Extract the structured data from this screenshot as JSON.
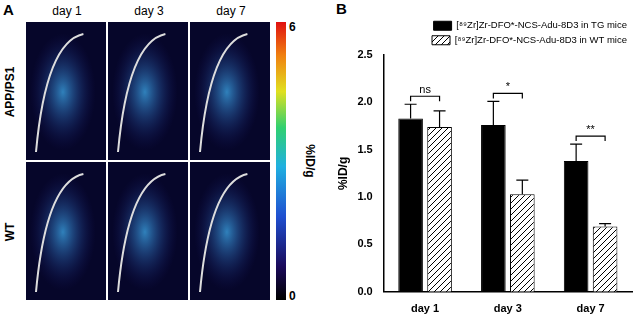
{
  "panel_a": {
    "panel_label": "A",
    "columns": [
      "day 1",
      "day 3",
      "day 7"
    ],
    "rows": [
      "APP/PS1",
      "WT"
    ],
    "colorbar": {
      "range": [
        0,
        6
      ],
      "ticks": [
        0,
        6
      ],
      "label": "%ID/g"
    }
  },
  "chart_data": {
    "type": "bar",
    "panel_label": "B",
    "categories": [
      "day 1",
      "day 3",
      "day 7"
    ],
    "series": [
      {
        "name": "[⁸⁹Zr]Zr-DFO*-NCS-Adu-8D3 in TG mice",
        "color": "#000000",
        "values": [
          1.83,
          1.76,
          1.38
        ],
        "errors": [
          0.15,
          0.25,
          0.18
        ]
      },
      {
        "name": "[⁸⁹Zr]Zr-DFO*-NCS-Adu-8D3 in WT mice",
        "color": "#000000",
        "values": [
          1.74,
          1.03,
          0.69
        ],
        "errors": [
          0.17,
          0.15,
          0.03
        ]
      }
    ],
    "y_label": "%ID/g",
    "ylim": [
      0,
      2.5
    ],
    "yticks": [
      {
        "value": 0,
        "label": "0.0"
      },
      0.5,
      {
        "value": 1,
        "label": "1.0"
      },
      1.5,
      {
        "value": 2,
        "label": "2.0"
      },
      2.5
    ],
    "significance": [
      "ns",
      "*",
      "**"
    ],
    "legend": "top",
    "grid": false
  }
}
